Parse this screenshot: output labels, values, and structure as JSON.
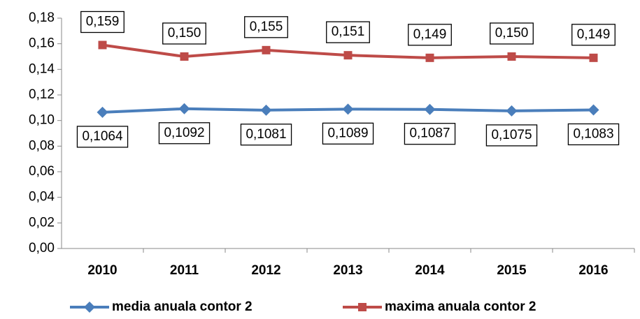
{
  "chart_data": {
    "type": "line",
    "categories": [
      "2010",
      "2011",
      "2012",
      "2013",
      "2014",
      "2015",
      "2016"
    ],
    "series": [
      {
        "name": "media anuala contor 2",
        "color": "#4a7ebb",
        "marker": "diamond",
        "values": [
          0.1064,
          0.1092,
          0.1081,
          0.1089,
          0.1087,
          0.1075,
          0.1083
        ],
        "value_labels": [
          "0,1064",
          "0,1092",
          "0,1081",
          "0,1089",
          "0,1087",
          "0,1075",
          "0,1083"
        ]
      },
      {
        "name": "maxima anuala contor 2",
        "color": "#be4b48",
        "marker": "square",
        "values": [
          0.159,
          0.15,
          0.155,
          0.151,
          0.149,
          0.15,
          0.149
        ],
        "value_labels": [
          "0,159",
          "0,150",
          "0,155",
          "0,151",
          "0,149",
          "0,150",
          "0,149"
        ]
      }
    ],
    "ylim": [
      0,
      0.18
    ],
    "yticks": [
      {
        "value": 0,
        "label": "0,00"
      },
      {
        "value": 0.02,
        "label": "0,02"
      },
      {
        "value": 0.04,
        "label": "0,04"
      },
      {
        "value": 0.06,
        "label": "0,06"
      },
      {
        "value": 0.08,
        "label": "0,08"
      },
      {
        "value": 0.1,
        "label": "0,10"
      },
      {
        "value": 0.12,
        "label": "0,12"
      },
      {
        "value": 0.14,
        "label": "0,14"
      },
      {
        "value": 0.16,
        "label": "0,16"
      },
      {
        "value": 0.18,
        "label": "0,18"
      }
    ],
    "grid": false,
    "legend": "bottom"
  }
}
